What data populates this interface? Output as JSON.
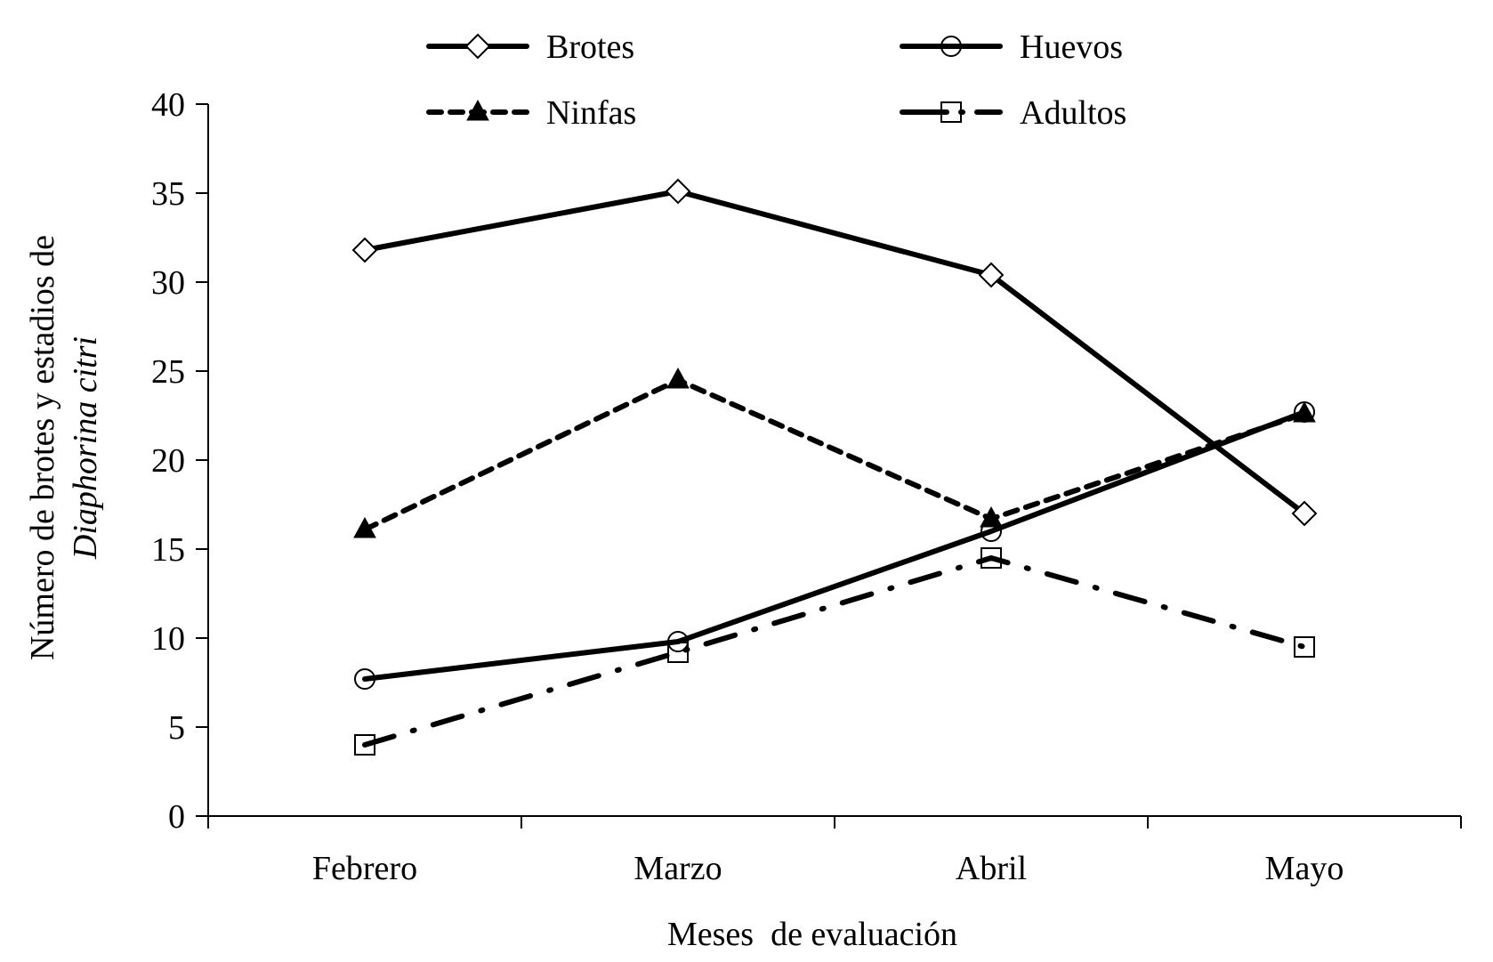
{
  "chart_data": {
    "type": "line",
    "title": "",
    "xlabel": "Meses  de evaluación",
    "ylabel_line1": "Número de brotes y estadios de",
    "ylabel_line2": "Diaphorina citri",
    "ylabel": "Número de brotes y estadios de Diaphorina citri",
    "categories": [
      "Febrero",
      "Marzo",
      "Abril",
      "Mayo"
    ],
    "ylim": [
      0,
      40
    ],
    "yticks": [
      0,
      5,
      10,
      15,
      20,
      25,
      30,
      35,
      40
    ],
    "grid": false,
    "legend_position": "top",
    "series": [
      {
        "name": "Brotes",
        "marker": "diamond-open",
        "line": "solid",
        "values": [
          31.8,
          35.1,
          30.4,
          17.0
        ]
      },
      {
        "name": "Huevos",
        "marker": "circle-open",
        "line": "solid",
        "values": [
          7.7,
          9.8,
          16.0,
          22.7
        ]
      },
      {
        "name": "Ninfas",
        "marker": "triangle-filled",
        "line": "dashed",
        "values": [
          16.1,
          24.5,
          16.7,
          22.6
        ]
      },
      {
        "name": "Adultos",
        "marker": "square-open",
        "line": "dash-dot",
        "values": [
          4.0,
          9.2,
          14.5,
          9.5
        ]
      }
    ]
  },
  "colors": {
    "line": "#000000",
    "background": "#ffffff"
  }
}
